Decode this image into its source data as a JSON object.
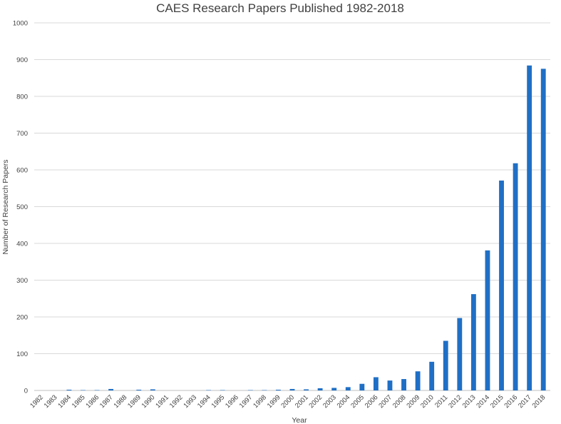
{
  "chart_data": {
    "type": "bar",
    "title": "CAES Research Papers Published 1982-2018",
    "xlabel": "Year",
    "ylabel": "Number of Research Papers",
    "ylim": [
      0,
      1000
    ],
    "yticks": [
      0,
      100,
      200,
      300,
      400,
      500,
      600,
      700,
      800,
      900,
      1000
    ],
    "grid": true,
    "bar_color": "#1f6fc5",
    "categories": [
      "1982",
      "1983",
      "1984",
      "1985",
      "1986",
      "1987",
      "1988",
      "1989",
      "1990",
      "1991",
      "1992",
      "1993",
      "1994",
      "1995",
      "1996",
      "1997",
      "1998",
      "1999",
      "2000",
      "2001",
      "2002",
      "2003",
      "2004",
      "2005",
      "2006",
      "2007",
      "2008",
      "2009",
      "2010",
      "2011",
      "2012",
      "2013",
      "2014",
      "2015",
      "2016",
      "2017",
      "2018"
    ],
    "values": [
      0,
      0,
      2,
      1,
      1,
      4,
      0,
      2,
      3,
      0,
      0,
      0,
      1,
      1,
      0,
      1,
      1,
      2,
      4,
      3,
      6,
      7,
      9,
      18,
      36,
      27,
      31,
      52,
      78,
      135,
      197,
      262,
      381,
      571,
      618,
      884,
      875
    ]
  }
}
